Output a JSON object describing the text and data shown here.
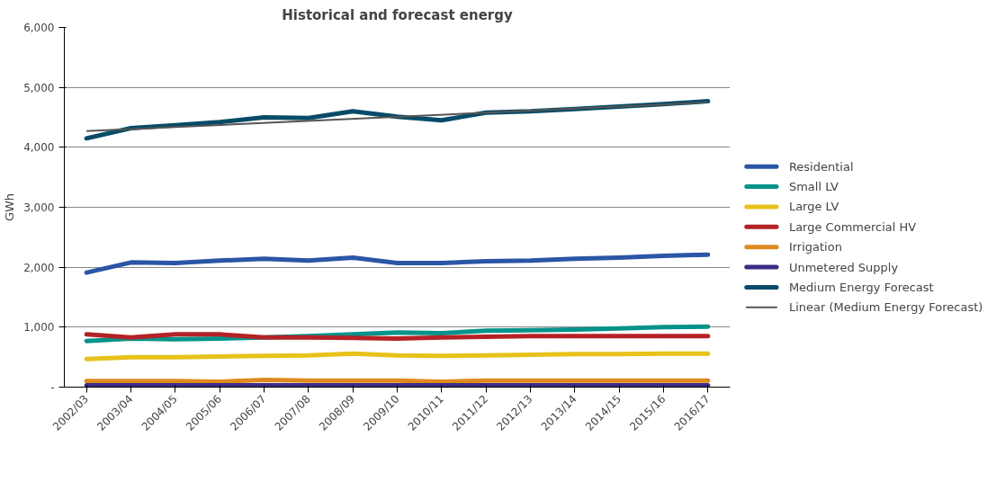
{
  "chart_data": {
    "type": "line",
    "title": "Historical and forecast energy",
    "ylabel": "GWh",
    "categories": [
      "2002/03",
      "2003/04",
      "2004/05",
      "2005/06",
      "2006/07",
      "2007/08",
      "2008/09",
      "2009/10",
      "2010/11",
      "2011/12",
      "2012/13",
      "2013/14",
      "2014/15",
      "2015/16",
      "2016/17"
    ],
    "series": [
      {
        "name": "Residential",
        "color": "#2a56a5",
        "values": [
          1910,
          2080,
          2070,
          2110,
          2140,
          2110,
          2160,
          2070,
          2070,
          2100,
          2110,
          2140,
          2160,
          2190,
          2210
        ]
      },
      {
        "name": "Small LV",
        "color": "#05938a",
        "values": [
          770,
          810,
          800,
          810,
          830,
          850,
          880,
          910,
          900,
          940,
          950,
          960,
          980,
          1000,
          1010
        ]
      },
      {
        "name": "Large LV",
        "color": "#e8c11a",
        "values": [
          470,
          500,
          500,
          510,
          520,
          530,
          560,
          530,
          520,
          530,
          540,
          550,
          550,
          560,
          560
        ]
      },
      {
        "name": "Large Commercial HV",
        "color": "#b52226",
        "values": [
          880,
          830,
          880,
          880,
          830,
          830,
          820,
          810,
          830,
          840,
          850,
          850,
          850,
          850,
          850
        ]
      },
      {
        "name": "Irrigation",
        "color": "#de8a1f",
        "values": [
          100,
          100,
          100,
          90,
          120,
          110,
          110,
          110,
          90,
          110,
          110,
          110,
          110,
          110,
          110
        ]
      },
      {
        "name": "Unmetered Supply",
        "color": "#3d2c86",
        "values": [
          30,
          30,
          30,
          30,
          30,
          30,
          30,
          30,
          30,
          30,
          30,
          30,
          30,
          30,
          30
        ]
      },
      {
        "name": "Medium Energy Forecast",
        "color": "#064c68",
        "values": [
          4150,
          4320,
          4370,
          4420,
          4500,
          4490,
          4600,
          4510,
          4450,
          4580,
          4600,
          4640,
          4680,
          4720,
          4770
        ]
      },
      {
        "name": "Linear (Medium Energy Forecast)",
        "color": "#555555",
        "x": [
          "2002/03",
          "2016/17"
        ],
        "values": [
          4270,
          4750
        ]
      }
    ],
    "ylim": [
      0,
      6000
    ],
    "yticks": [
      {
        "value": 0,
        "label": "-"
      },
      {
        "value": 1000,
        "label": "1,000"
      },
      {
        "value": 2000,
        "label": "2,000"
      },
      {
        "value": 3000,
        "label": "3,000"
      },
      {
        "value": 4000,
        "label": "4,000"
      },
      {
        "value": 5000,
        "label": "5,000"
      },
      {
        "value": 6000,
        "label": "6,000"
      }
    ],
    "grid": "y",
    "legend": "right"
  }
}
